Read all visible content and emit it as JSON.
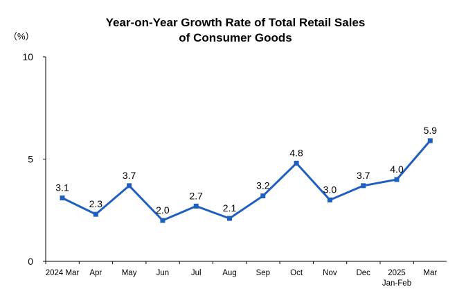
{
  "chart_data": {
    "type": "line",
    "title": "Year-on-Year Growth Rate of Total Retail Sales",
    "subtitle": "of Consumer Goods",
    "ylabel": "（%）",
    "xlabel": "",
    "ylim": [
      0,
      10
    ],
    "yticks": [
      "0",
      "5",
      "10"
    ],
    "yticks_values": [
      0,
      5,
      10
    ],
    "grid": false,
    "legend": "none",
    "line_color": "#1f5fbf",
    "categories": [
      [
        "2024 Mar"
      ],
      [
        "Apr"
      ],
      [
        "May"
      ],
      [
        "Jun"
      ],
      [
        "Jul"
      ],
      [
        "Aug"
      ],
      [
        "Sep"
      ],
      [
        "Oct"
      ],
      [
        "Nov"
      ],
      [
        "Dec"
      ],
      [
        "2025",
        "Jan-Feb"
      ],
      [
        "Mar"
      ]
    ],
    "series": [
      {
        "values": [
          3.1,
          2.3,
          3.7,
          2.0,
          2.7,
          2.1,
          3.2,
          4.8,
          3.0,
          3.7,
          4.0,
          5.9
        ],
        "labels": [
          "3.1",
          "2.3",
          "3.7",
          "2.0",
          "2.7",
          "2.1",
          "3.2",
          "4.8",
          "3.0",
          "3.7",
          "4.0",
          "5.9"
        ]
      }
    ]
  }
}
